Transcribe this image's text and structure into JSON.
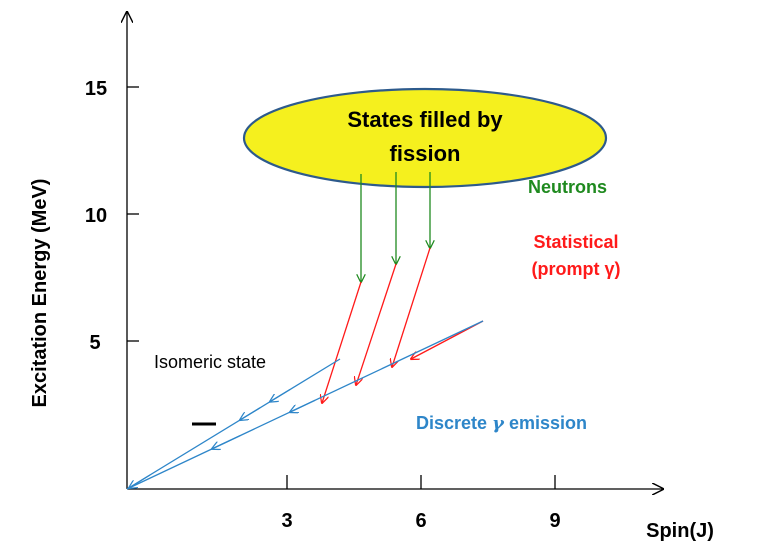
{
  "axes": {
    "y_title": "Excitation Energy (MeV)",
    "x_title": "Spin(J)",
    "y_ticks": [
      "5",
      "10",
      "15"
    ],
    "x_ticks": [
      "3",
      "6",
      "9"
    ]
  },
  "ellipse": {
    "line1": "States filled by",
    "line2": "fission",
    "fill": "#f5f01e",
    "stroke": "#2d5a8c"
  },
  "labels": {
    "neutrons": "Neutrons",
    "statistical_line1": "Statistical",
    "statistical_line2": "(prompt γ)",
    "isomeric": "Isomeric state",
    "discrete_prefix": "Discrete ",
    "discrete_symbol": "γ",
    "discrete_suffix": " emission"
  },
  "colors": {
    "neutrons": "#1f8a1f",
    "statistical": "#ff1a1a",
    "discrete": "#2e86c9",
    "axis": "#000000"
  }
}
